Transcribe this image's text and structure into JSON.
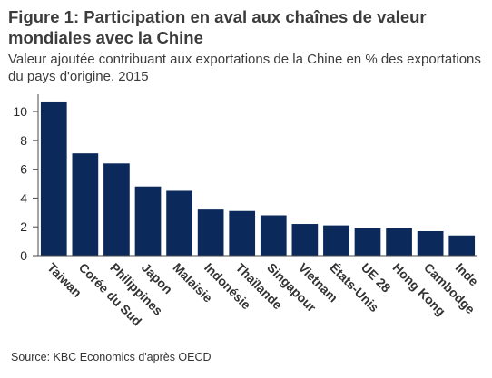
{
  "title": "Figure 1: Participation en aval aux chaînes de valeur mondiales avec la Chine",
  "subtitle": "Valeur ajoutée contribuant aux exportations de la Chine en % des exportations du pays d'origine, 2015",
  "source": "Source: KBC Economics d'après OECD",
  "colors": {
    "bar": "#0b2a5b",
    "axis": "#4a4a4a"
  },
  "chart_data": {
    "type": "bar",
    "categories": [
      "Taiwan",
      "Corée du Sud",
      "Philippines",
      "Japon",
      "Malaisie",
      "Indonésie",
      "Thaïlande",
      "Singapour",
      "Vietnam",
      "États-Unis",
      "UE 28",
      "Hong Kong",
      "Cambodge",
      "Inde"
    ],
    "values": [
      10.7,
      7.1,
      6.4,
      4.8,
      4.5,
      3.2,
      3.1,
      2.8,
      2.2,
      2.1,
      1.9,
      1.9,
      1.7,
      1.4
    ],
    "yticks": [
      0,
      2,
      4,
      6,
      8,
      10
    ],
    "ylim": [
      0,
      11.2
    ],
    "grid": false,
    "xlabel": "",
    "ylabel": ""
  }
}
